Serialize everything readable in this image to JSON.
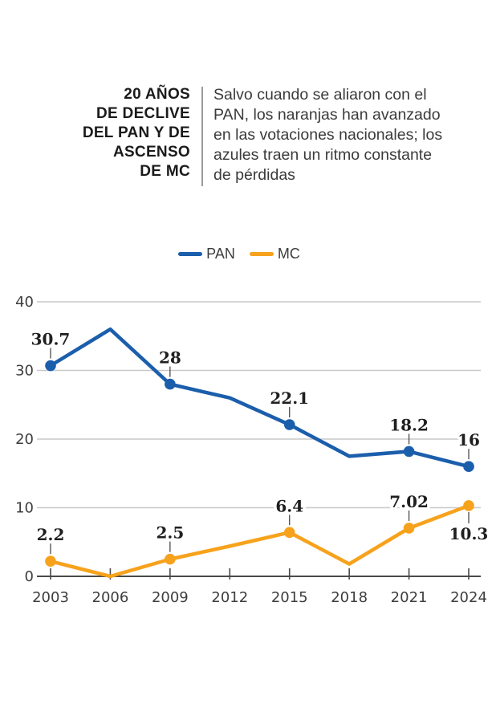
{
  "header": {
    "kicker_lines": [
      "20 AÑOS",
      "DE DECLIVE",
      "DEL PAN Y DE",
      "ASCENSO",
      "DE MC"
    ],
    "description_lines": [
      "Salvo cuando se aliaron con el",
      "PAN, los naranjas han avanzado",
      "en las votaciones nacionales; los",
      "azules traen un ritmo constante",
      "de pérdidas"
    ]
  },
  "legend": {
    "items": [
      {
        "label": "PAN",
        "color": "#1b5eac"
      },
      {
        "label": "MC",
        "color": "#f7a21c"
      }
    ]
  },
  "chart_data": {
    "type": "line",
    "title": "20 años de declive del PAN y de ascenso de MC",
    "x": [
      2003,
      2006,
      2009,
      2012,
      2015,
      2018,
      2021,
      2024
    ],
    "series": [
      {
        "name": "PAN",
        "color": "#1b5eac",
        "values": [
          30.7,
          36,
          28,
          26,
          22.1,
          17.5,
          18.2,
          16
        ],
        "point_labels": [
          "30.7",
          null,
          "28",
          null,
          "22.1",
          null,
          "18.2",
          "16"
        ],
        "label_side": [
          "above",
          null,
          "above",
          null,
          "above",
          null,
          "above",
          "above"
        ]
      },
      {
        "name": "MC",
        "color": "#f7a21c",
        "values": [
          2.2,
          0,
          2.5,
          4.4,
          6.4,
          1.8,
          7.02,
          10.3
        ],
        "point_labels": [
          "2.2",
          null,
          "2.5",
          null,
          "6.4",
          null,
          "7.02",
          "10.3"
        ],
        "label_side": [
          "above",
          null,
          "above",
          null,
          "above",
          null,
          "above",
          "below"
        ]
      }
    ],
    "ylim": [
      0,
      40
    ],
    "yticks": [
      0,
      10,
      20,
      30,
      40
    ],
    "grid": true,
    "legend_position": "top",
    "colors": {
      "gridline": "#c9c9c9",
      "axis": "#4a4a4a",
      "tick_text": "#3e3e3e",
      "data_label": "#1f1f1f"
    }
  }
}
